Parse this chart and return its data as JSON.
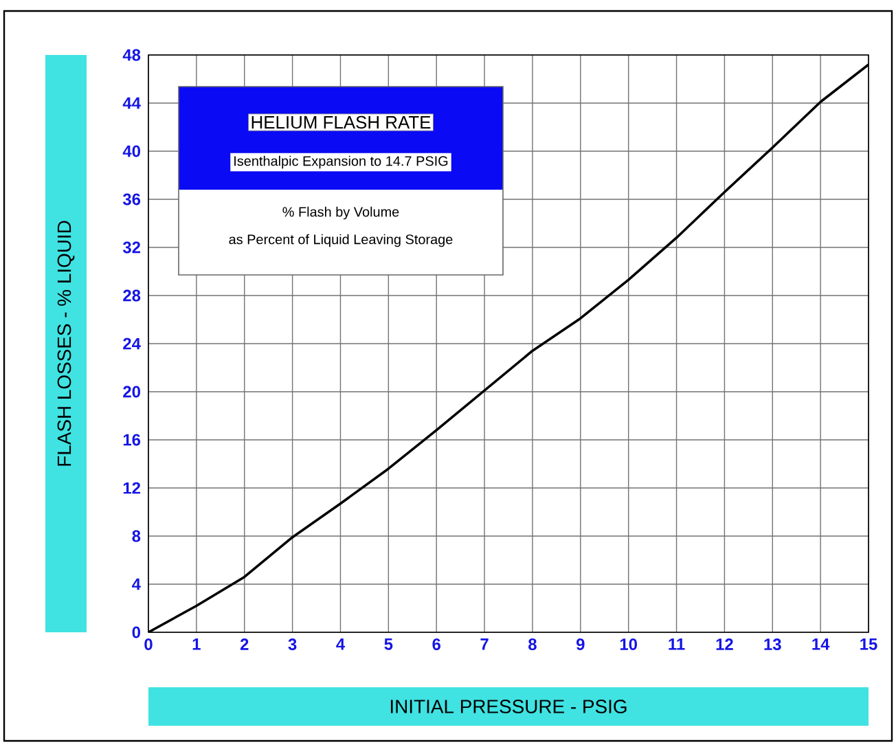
{
  "chart_data": {
    "type": "line",
    "title": "HELIUM FLASH RATE",
    "subtitle": "Isenthalpic Expansion to 14.7 PSIG",
    "annotations": [
      "% Flash by Volume",
      "as Percent of Liquid Leaving Storage"
    ],
    "xlabel": "INITIAL PRESSURE - PSIG",
    "ylabel": "FLASH LOSSES - % LIQUID",
    "x": [
      0,
      1,
      2,
      3,
      4,
      5,
      6,
      7,
      8,
      9,
      10,
      11,
      12,
      13,
      14,
      15
    ],
    "series": [
      {
        "color": "#000000",
        "values": [
          0,
          2.2,
          4.6,
          7.9,
          10.7,
          13.6,
          16.8,
          20.1,
          23.4,
          26.1,
          29.3,
          32.8,
          36.6,
          40.3,
          44.1,
          47.2
        ]
      }
    ],
    "xlim": [
      0,
      15
    ],
    "ylim": [
      0,
      48
    ],
    "xticks": [
      0,
      1,
      2,
      3,
      4,
      5,
      6,
      7,
      8,
      9,
      10,
      11,
      12,
      13,
      14,
      15
    ],
    "yticks": [
      0,
      4,
      8,
      12,
      16,
      20,
      24,
      28,
      32,
      36,
      40,
      44,
      48
    ],
    "grid": true
  }
}
